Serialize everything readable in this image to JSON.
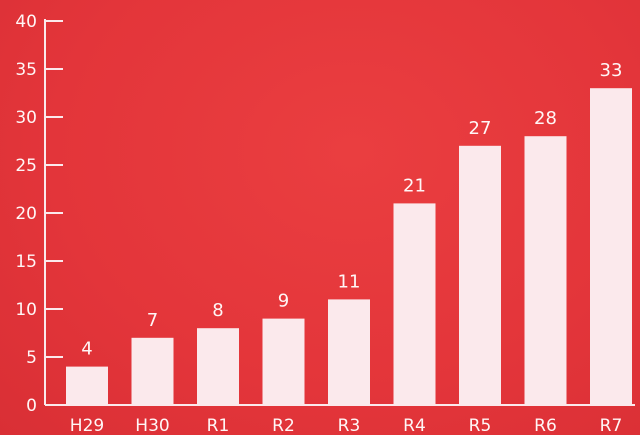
{
  "colors": {
    "background": "#e5383b",
    "bar": "#fbe9ec",
    "axis": "#fbe9ec",
    "text": "#fff6f6"
  },
  "chart_data": {
    "type": "bar",
    "title": "",
    "xlabel": "",
    "ylabel": "",
    "categories": [
      "H29",
      "H30",
      "R1",
      "R2",
      "R3",
      "R4",
      "R5",
      "R6",
      "R7"
    ],
    "values": [
      4,
      7,
      8,
      9,
      11,
      21,
      27,
      28,
      33
    ],
    "ylim": [
      0,
      40
    ],
    "yticks": [
      0,
      5,
      10,
      15,
      20,
      25,
      30,
      35,
      40
    ],
    "data_labels": [
      "4",
      "7",
      "8",
      "9",
      "11",
      "21",
      "27",
      "28",
      "33"
    ],
    "grid": false,
    "legend": "none"
  }
}
